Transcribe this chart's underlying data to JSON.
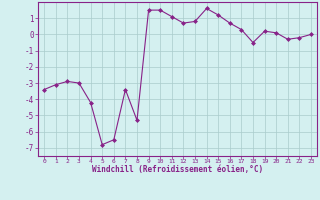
{
  "x": [
    0,
    1,
    2,
    3,
    4,
    5,
    6,
    7,
    8,
    9,
    10,
    11,
    12,
    13,
    14,
    15,
    16,
    17,
    18,
    19,
    20,
    21,
    22,
    23
  ],
  "y": [
    -3.4,
    -3.1,
    -2.9,
    -3.0,
    -4.2,
    -6.8,
    -6.5,
    -3.4,
    -5.3,
    1.5,
    1.5,
    1.1,
    0.7,
    0.8,
    1.6,
    1.2,
    0.7,
    0.3,
    -0.5,
    0.2,
    0.1,
    -0.3,
    -0.2,
    0.0
  ],
  "line_color": "#882288",
  "marker": "D",
  "marker_size": 2,
  "bg_color": "#d4f0f0",
  "grid_color": "#aacccc",
  "xlabel": "Windchill (Refroidissement éolien,°C)",
  "xlabel_color": "#882288",
  "tick_color": "#882288",
  "spine_color": "#882288",
  "ylim": [
    -7.5,
    2.0
  ],
  "yticks": [
    -7,
    -6,
    -5,
    -4,
    -3,
    -2,
    -1,
    0,
    1
  ],
  "xlim": [
    -0.5,
    23.5
  ],
  "xticks": [
    0,
    1,
    2,
    3,
    4,
    5,
    6,
    7,
    8,
    9,
    10,
    11,
    12,
    13,
    14,
    15,
    16,
    17,
    18,
    19,
    20,
    21,
    22,
    23
  ]
}
